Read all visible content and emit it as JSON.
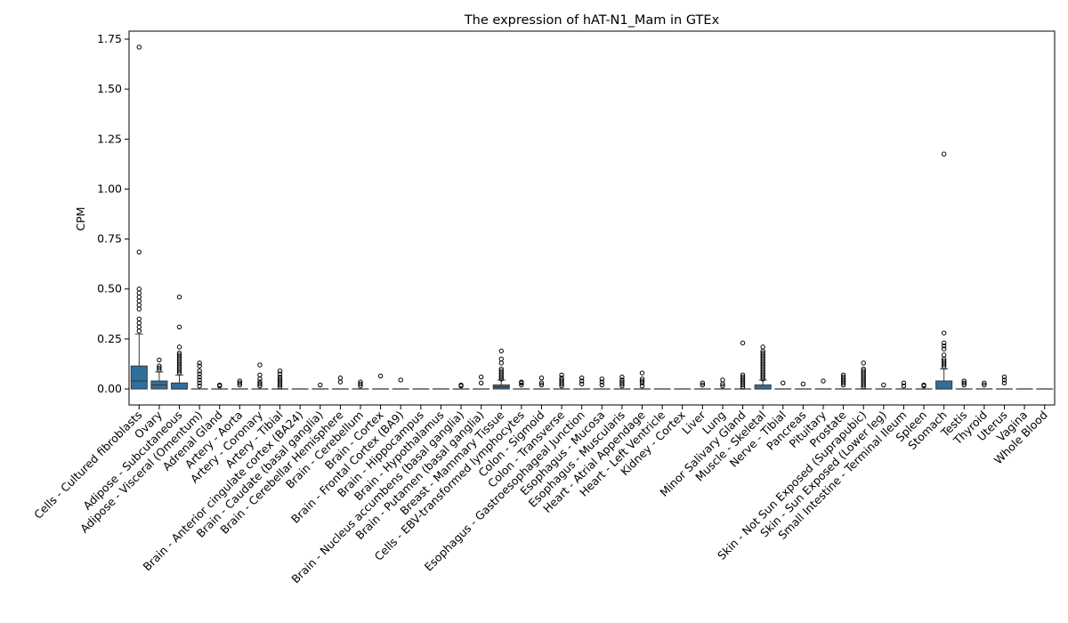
{
  "chart_data": {
    "type": "box",
    "title": "The expression of hAT-N1_Mam in GTEx",
    "xlabel": "",
    "ylabel": "CPM",
    "ylim": [
      -0.08,
      1.79
    ],
    "yticks": [
      "0.00",
      "0.25",
      "0.50",
      "0.75",
      "1.00",
      "1.25",
      "1.50",
      "1.75"
    ],
    "box_color": "#2f6f9e",
    "categories": [
      {
        "name": "Cells - Cultured fibroblasts",
        "q1": 0.0,
        "median": 0.04,
        "q3": 0.115,
        "whisker_high": 0.275,
        "outliers": [
          0.29,
          0.31,
          0.33,
          0.35,
          0.4,
          0.42,
          0.44,
          0.46,
          0.48,
          0.5,
          0.685,
          1.71
        ]
      },
      {
        "name": "Ovary",
        "q1": 0.0,
        "median": 0.02,
        "q3": 0.04,
        "whisker_high": 0.085,
        "outliers": [
          0.095,
          0.105,
          0.115,
          0.145
        ]
      },
      {
        "name": "Adipose - Subcutaneous",
        "q1": 0.0,
        "median": 0.0,
        "q3": 0.03,
        "whisker_high": 0.07,
        "outliers": [
          0.08,
          0.09,
          0.1,
          0.11,
          0.12,
          0.13,
          0.14,
          0.15,
          0.16,
          0.17,
          0.18,
          0.21,
          0.31,
          0.46
        ]
      },
      {
        "name": "Adipose - Visceral (Omentum)",
        "q1": 0.0,
        "median": 0.0,
        "q3": 0.0,
        "whisker_high": 0.0,
        "outliers": [
          0.015,
          0.03,
          0.045,
          0.06,
          0.075,
          0.09,
          0.115,
          0.13
        ]
      },
      {
        "name": "Adrenal Gland",
        "q1": 0.0,
        "median": 0.0,
        "q3": 0.0,
        "whisker_high": 0.0,
        "outliers": [
          0.015,
          0.02
        ]
      },
      {
        "name": "Artery - Aorta",
        "q1": 0.0,
        "median": 0.0,
        "q3": 0.0,
        "whisker_high": 0.0,
        "outliers": [
          0.02,
          0.03,
          0.04
        ]
      },
      {
        "name": "Artery - Coronary",
        "q1": 0.0,
        "median": 0.0,
        "q3": 0.0,
        "whisker_high": 0.0,
        "outliers": [
          0.015,
          0.025,
          0.035,
          0.05,
          0.07,
          0.12
        ]
      },
      {
        "name": "Artery - Tibial",
        "q1": 0.0,
        "median": 0.0,
        "q3": 0.0,
        "whisker_high": 0.0,
        "outliers": [
          0.01,
          0.02,
          0.03,
          0.04,
          0.05,
          0.06,
          0.075,
          0.09
        ]
      },
      {
        "name": "Brain - Anterior cingulate cortex (BA24)",
        "q1": 0.0,
        "median": 0.0,
        "q3": 0.0,
        "whisker_high": 0.0,
        "outliers": []
      },
      {
        "name": "Brain - Caudate (basal ganglia)",
        "q1": 0.0,
        "median": 0.0,
        "q3": 0.0,
        "whisker_high": 0.0,
        "outliers": [
          0.02
        ]
      },
      {
        "name": "Brain - Cerebellar Hemisphere",
        "q1": 0.0,
        "median": 0.0,
        "q3": 0.0,
        "whisker_high": 0.0,
        "outliers": [
          0.035,
          0.055
        ]
      },
      {
        "name": "Brain - Cerebellum",
        "q1": 0.0,
        "median": 0.0,
        "q3": 0.0,
        "whisker_high": 0.0,
        "outliers": [
          0.015,
          0.025,
          0.035
        ]
      },
      {
        "name": "Brain - Cortex",
        "q1": 0.0,
        "median": 0.0,
        "q3": 0.0,
        "whisker_high": 0.0,
        "outliers": [
          0.065
        ]
      },
      {
        "name": "Brain - Frontal Cortex (BA9)",
        "q1": 0.0,
        "median": 0.0,
        "q3": 0.0,
        "whisker_high": 0.0,
        "outliers": [
          0.045
        ]
      },
      {
        "name": "Brain - Hippocampus",
        "q1": 0.0,
        "median": 0.0,
        "q3": 0.0,
        "whisker_high": 0.0,
        "outliers": []
      },
      {
        "name": "Brain - Hypothalamus",
        "q1": 0.0,
        "median": 0.0,
        "q3": 0.0,
        "whisker_high": 0.0,
        "outliers": []
      },
      {
        "name": "Brain - Nucleus accumbens (basal ganglia)",
        "q1": 0.0,
        "median": 0.0,
        "q3": 0.0,
        "whisker_high": 0.0,
        "outliers": [
          0.015,
          0.02
        ]
      },
      {
        "name": "Brain - Putamen (basal ganglia)",
        "q1": 0.0,
        "median": 0.0,
        "q3": 0.0,
        "whisker_high": 0.0,
        "outliers": [
          0.03,
          0.06
        ]
      },
      {
        "name": "Breast - Mammary Tissue",
        "q1": 0.0,
        "median": 0.01,
        "q3": 0.02,
        "whisker_high": 0.045,
        "outliers": [
          0.05,
          0.06,
          0.07,
          0.08,
          0.09,
          0.1,
          0.13,
          0.15,
          0.19
        ]
      },
      {
        "name": "Cells - EBV-transformed lymphocytes",
        "q1": 0.0,
        "median": 0.0,
        "q3": 0.0,
        "whisker_high": 0.0,
        "outliers": [
          0.02,
          0.03,
          0.035
        ]
      },
      {
        "name": "Colon - Sigmoid",
        "q1": 0.0,
        "median": 0.0,
        "q3": 0.0,
        "whisker_high": 0.0,
        "outliers": [
          0.02,
          0.03,
          0.055
        ]
      },
      {
        "name": "Colon - Transverse",
        "q1": 0.0,
        "median": 0.0,
        "q3": 0.0,
        "whisker_high": 0.0,
        "outliers": [
          0.015,
          0.025,
          0.035,
          0.045,
          0.055,
          0.07
        ]
      },
      {
        "name": "Esophagus - Gastroesophageal Junction",
        "q1": 0.0,
        "median": 0.0,
        "q3": 0.0,
        "whisker_high": 0.0,
        "outliers": [
          0.025,
          0.04,
          0.055
        ]
      },
      {
        "name": "Esophagus - Mucosa",
        "q1": 0.0,
        "median": 0.0,
        "q3": 0.0,
        "whisker_high": 0.0,
        "outliers": [
          0.02,
          0.035,
          0.05
        ]
      },
      {
        "name": "Esophagus - Muscularis",
        "q1": 0.0,
        "median": 0.0,
        "q3": 0.0,
        "whisker_high": 0.0,
        "outliers": [
          0.015,
          0.025,
          0.035,
          0.045,
          0.06
        ]
      },
      {
        "name": "Heart - Atrial Appendage",
        "q1": 0.0,
        "median": 0.0,
        "q3": 0.0,
        "whisker_high": 0.0,
        "outliers": [
          0.015,
          0.03,
          0.04,
          0.05,
          0.08
        ]
      },
      {
        "name": "Heart - Left Ventricle",
        "q1": 0.0,
        "median": 0.0,
        "q3": 0.0,
        "whisker_high": 0.0,
        "outliers": []
      },
      {
        "name": "Kidney - Cortex",
        "q1": 0.0,
        "median": 0.0,
        "q3": 0.0,
        "whisker_high": 0.0,
        "outliers": []
      },
      {
        "name": "Liver",
        "q1": 0.0,
        "median": 0.0,
        "q3": 0.0,
        "whisker_high": 0.0,
        "outliers": [
          0.02,
          0.03
        ]
      },
      {
        "name": "Lung",
        "q1": 0.0,
        "median": 0.0,
        "q3": 0.0,
        "whisker_high": 0.0,
        "outliers": [
          0.015,
          0.025,
          0.045
        ]
      },
      {
        "name": "Minor Salivary Gland",
        "q1": 0.0,
        "median": 0.0,
        "q3": 0.0,
        "whisker_high": 0.0,
        "outliers": [
          0.01,
          0.02,
          0.03,
          0.04,
          0.05,
          0.06,
          0.07,
          0.23
        ]
      },
      {
        "name": "Muscle - Skeletal",
        "q1": 0.0,
        "median": 0.0,
        "q3": 0.02,
        "whisker_high": 0.045,
        "outliers": [
          0.05,
          0.06,
          0.07,
          0.08,
          0.09,
          0.1,
          0.11,
          0.12,
          0.13,
          0.14,
          0.15,
          0.16,
          0.17,
          0.18,
          0.19,
          0.21
        ]
      },
      {
        "name": "Nerve - Tibial",
        "q1": 0.0,
        "median": 0.0,
        "q3": 0.0,
        "whisker_high": 0.0,
        "outliers": [
          0.03
        ]
      },
      {
        "name": "Pancreas",
        "q1": 0.0,
        "median": 0.0,
        "q3": 0.0,
        "whisker_high": 0.0,
        "outliers": [
          0.025
        ]
      },
      {
        "name": "Pituitary",
        "q1": 0.0,
        "median": 0.0,
        "q3": 0.0,
        "whisker_high": 0.0,
        "outliers": [
          0.04
        ]
      },
      {
        "name": "Prostate",
        "q1": 0.0,
        "median": 0.0,
        "q3": 0.0,
        "whisker_high": 0.0,
        "outliers": [
          0.02,
          0.03,
          0.04,
          0.05,
          0.06,
          0.07
        ]
      },
      {
        "name": "Skin - Not Sun Exposed (Suprapubic)",
        "q1": 0.0,
        "median": 0.0,
        "q3": 0.0,
        "whisker_high": 0.0,
        "outliers": [
          0.01,
          0.02,
          0.03,
          0.04,
          0.05,
          0.06,
          0.07,
          0.08,
          0.09,
          0.1,
          0.13
        ]
      },
      {
        "name": "Skin - Sun Exposed (Lower leg)",
        "q1": 0.0,
        "median": 0.0,
        "q3": 0.0,
        "whisker_high": 0.0,
        "outliers": [
          0.02
        ]
      },
      {
        "name": "Small Intestine - Terminal Ileum",
        "q1": 0.0,
        "median": 0.0,
        "q3": 0.0,
        "whisker_high": 0.0,
        "outliers": [
          0.015,
          0.03
        ]
      },
      {
        "name": "Spleen",
        "q1": 0.0,
        "median": 0.0,
        "q3": 0.0,
        "whisker_high": 0.0,
        "outliers": [
          0.015,
          0.02
        ]
      },
      {
        "name": "Stomach",
        "q1": 0.0,
        "median": 0.0,
        "q3": 0.04,
        "whisker_high": 0.1,
        "outliers": [
          0.11,
          0.12,
          0.13,
          0.14,
          0.15,
          0.17,
          0.2,
          0.215,
          0.23,
          0.28,
          1.175
        ]
      },
      {
        "name": "Testis",
        "q1": 0.0,
        "median": 0.0,
        "q3": 0.0,
        "whisker_high": 0.0,
        "outliers": [
          0.02,
          0.03,
          0.04
        ]
      },
      {
        "name": "Thyroid",
        "q1": 0.0,
        "median": 0.0,
        "q3": 0.0,
        "whisker_high": 0.0,
        "outliers": [
          0.02,
          0.03
        ]
      },
      {
        "name": "Uterus",
        "q1": 0.0,
        "median": 0.0,
        "q3": 0.0,
        "whisker_high": 0.0,
        "outliers": [
          0.03,
          0.045,
          0.06
        ]
      },
      {
        "name": "Vagina",
        "q1": 0.0,
        "median": 0.0,
        "q3": 0.0,
        "whisker_high": 0.0,
        "outliers": []
      },
      {
        "name": "Whole Blood",
        "q1": 0.0,
        "median": 0.0,
        "q3": 0.0,
        "whisker_high": 0.0,
        "outliers": []
      }
    ]
  }
}
